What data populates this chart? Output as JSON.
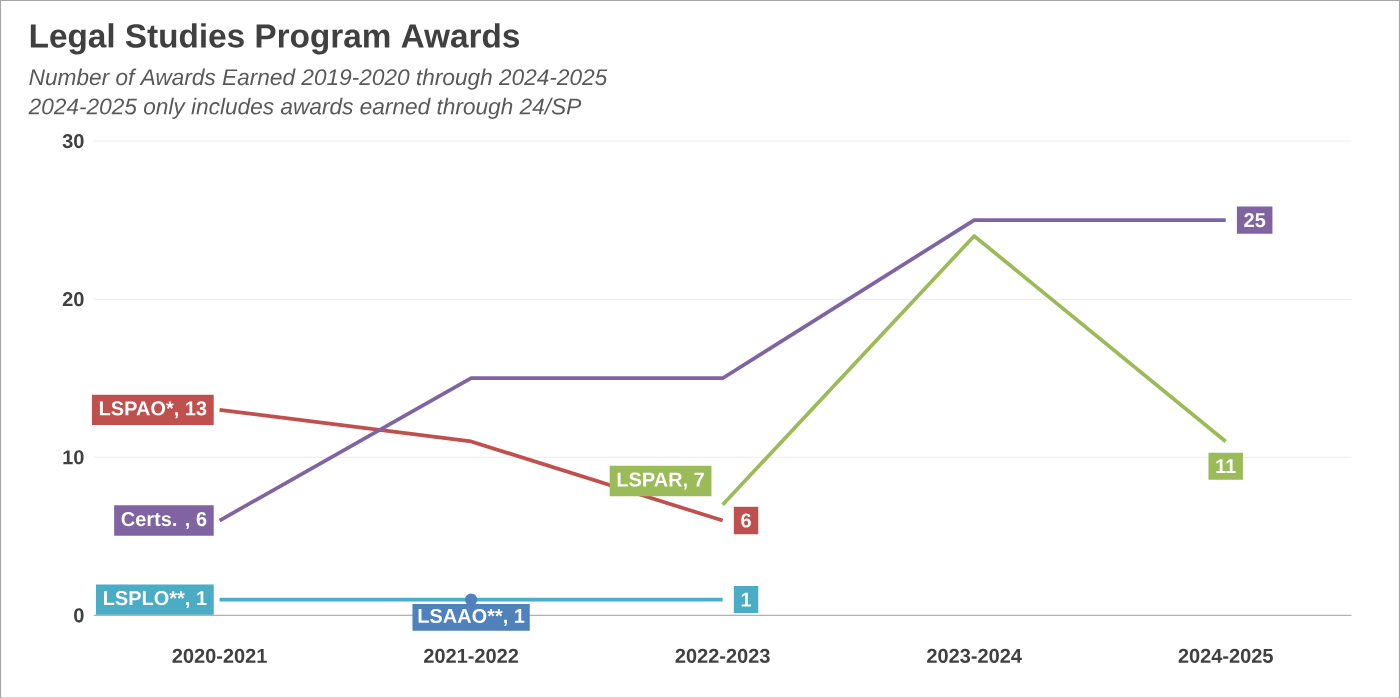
{
  "chart_data": {
    "type": "line",
    "title": "Legal Studies Program Awards",
    "subtitle": "Number of Awards Earned 2019-2020 through 2024-2025",
    "annotations": [
      "2024-2025 only includes awards earned through 24/SP"
    ],
    "categories": [
      "2020-2021",
      "2021-2022",
      "2022-2023",
      "2023-2024",
      "2024-2025"
    ],
    "ylim": [
      0,
      30
    ],
    "yticks": [
      0,
      10,
      20,
      30
    ],
    "grid": "y",
    "series": [
      {
        "color": "#4bacc6",
        "values": [
          1,
          1,
          1,
          null,
          null
        ],
        "value_labels": [
          "LSPLO**, 1",
          null,
          "1",
          null,
          null
        ]
      },
      {
        "color": "#4f81bd",
        "marker": "circle",
        "values": [
          null,
          1,
          null,
          null,
          null
        ],
        "value_labels": [
          null,
          "LSAAO**, 1",
          null,
          null,
          null
        ]
      },
      {
        "color": "#c0504d",
        "values": [
          13,
          11,
          6,
          null,
          null
        ],
        "value_labels": [
          "LSPAO*, 13",
          null,
          "6",
          null,
          null
        ]
      },
      {
        "color": "#9bbb59",
        "values": [
          null,
          null,
          7,
          24,
          11
        ],
        "value_labels": [
          null,
          null,
          "LSPAR, 7",
          null,
          "11"
        ]
      },
      {
        "color": "#8064a2",
        "values": [
          6,
          15,
          15,
          25,
          25
        ],
        "value_labels": [
          "Certs. , 6",
          null,
          null,
          null,
          "25"
        ]
      }
    ]
  }
}
